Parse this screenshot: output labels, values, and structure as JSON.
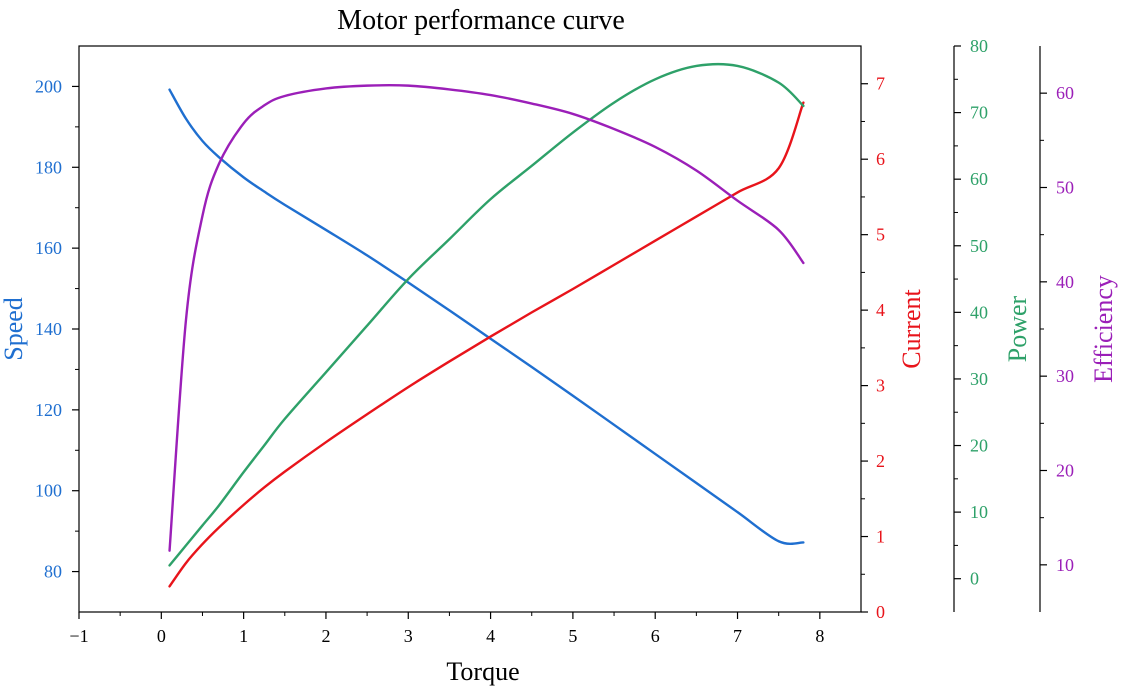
{
  "chart_data": {
    "type": "line",
    "title": "Motor performance curve",
    "xlabel": "Torque",
    "xlim": [
      -1,
      8.5
    ],
    "xticks": [
      -1,
      0,
      1,
      2,
      3,
      4,
      5,
      6,
      7,
      8
    ],
    "xtick_labels": [
      "−1",
      "0",
      "1",
      "2",
      "3",
      "4",
      "5",
      "6",
      "7",
      "8"
    ],
    "grid": false,
    "legend": "none",
    "x": [
      0.1,
      0.3,
      0.5,
      0.7,
      1.0,
      1.25,
      1.5,
      2.0,
      2.5,
      3.0,
      3.5,
      4.0,
      4.5,
      5.0,
      5.5,
      6.0,
      6.5,
      7.0,
      7.5,
      7.8
    ],
    "axes": [
      {
        "key": "speed",
        "label": "Speed",
        "color": "#1f6fd0",
        "side": "left",
        "lim": [
          70,
          210
        ],
        "ticks": [
          80,
          100,
          120,
          140,
          160,
          180,
          200
        ],
        "tick_labels": [
          "80",
          "100",
          "120",
          "140",
          "160",
          "180",
          "200"
        ]
      },
      {
        "key": "current",
        "label": "Current",
        "color": "#e8141b",
        "side": "right",
        "lim": [
          0,
          7.5
        ],
        "ticks": [
          0,
          1,
          2,
          3,
          4,
          5,
          6,
          7
        ],
        "tick_labels": [
          "0",
          "1",
          "2",
          "3",
          "4",
          "5",
          "6",
          "7"
        ]
      },
      {
        "key": "power",
        "label": "Power",
        "color": "#2ea169",
        "side": "right",
        "lim": [
          -5,
          80
        ],
        "ticks": [
          0,
          10,
          20,
          30,
          40,
          50,
          60,
          70,
          80
        ],
        "tick_labels": [
          "0",
          "10",
          "20",
          "30",
          "40",
          "50",
          "60",
          "70",
          "80"
        ]
      },
      {
        "key": "efficiency",
        "label": "Efficiency",
        "color": "#9b1fb8",
        "side": "right",
        "lim": [
          5,
          65
        ],
        "ticks": [
          10,
          20,
          30,
          40,
          50,
          60
        ],
        "tick_labels": [
          "10",
          "20",
          "30",
          "40",
          "50",
          "60"
        ]
      }
    ],
    "series": [
      {
        "name": "Speed",
        "axis": "speed",
        "color": "#1f6fd0",
        "values": [
          199.2,
          192.0,
          186.5,
          182.5,
          177.5,
          174.0,
          170.7,
          164.5,
          158.2,
          151.5,
          144.6,
          137.6,
          130.6,
          123.5,
          116.3,
          109.1,
          101.9,
          94.7,
          87.5,
          87.2
        ]
      },
      {
        "name": "Current",
        "axis": "current",
        "color": "#e8141b",
        "values": [
          0.34,
          0.65,
          0.9,
          1.12,
          1.42,
          1.65,
          1.86,
          2.25,
          2.62,
          2.98,
          3.32,
          3.65,
          3.97,
          4.28,
          4.6,
          4.92,
          5.24,
          5.56,
          5.88,
          6.75
        ]
      },
      {
        "name": "Power",
        "axis": "power",
        "color": "#2ea169",
        "values": [
          2.0,
          5.0,
          8.0,
          11.0,
          16.0,
          20.0,
          24.0,
          31.0,
          38.0,
          45.0,
          51.0,
          57.0,
          62.0,
          67.0,
          71.5,
          75.0,
          77.0,
          77.0,
          74.5,
          71.0
        ]
      },
      {
        "name": "Efficiency",
        "axis": "efficiency",
        "color": "#9b1fb8",
        "values": [
          11.5,
          36.0,
          47.0,
          52.5,
          56.8,
          58.7,
          59.7,
          60.5,
          60.8,
          60.8,
          60.4,
          59.8,
          58.9,
          57.8,
          56.2,
          54.3,
          51.8,
          48.6,
          45.5,
          42.0
        ]
      }
    ]
  }
}
